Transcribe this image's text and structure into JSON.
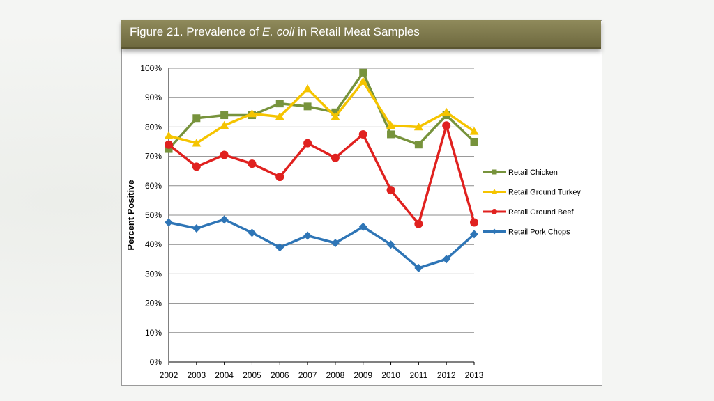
{
  "title": {
    "prefix": "Figure 21. Prevalence of ",
    "italic": "E. coli",
    "suffix": " in Retail Meat Samples"
  },
  "chart_data": {
    "type": "line",
    "title": "Figure 21. Prevalence of E. coli in Retail Meat Samples",
    "ylabel": "Percent Positive",
    "xlabel": "",
    "x": [
      "2002",
      "2003",
      "2004",
      "2005",
      "2006",
      "2007",
      "2008",
      "2009",
      "2010",
      "2011",
      "2012",
      "2013"
    ],
    "ylim": [
      0,
      100
    ],
    "yticks": [
      0,
      10,
      20,
      30,
      40,
      50,
      60,
      70,
      80,
      90,
      100
    ],
    "ytick_suffix": "%",
    "grid": true,
    "legend_position": "right",
    "series": [
      {
        "name": "Retail Chicken",
        "color": "#77933c",
        "marker": "square",
        "values": [
          72.5,
          83,
          84,
          84,
          88,
          87,
          85,
          98.5,
          77.5,
          74,
          84,
          75
        ]
      },
      {
        "name": "Retail Ground Turkey",
        "color": "#f5c400",
        "marker": "triangle",
        "values": [
          77,
          74.5,
          80.5,
          84.5,
          83.5,
          93,
          83.5,
          95.5,
          80.5,
          80,
          85,
          78.5
        ]
      },
      {
        "name": "Retail Ground Beef",
        "color": "#e0211f",
        "marker": "circle",
        "values": [
          74,
          66.5,
          70.5,
          67.5,
          63,
          74.5,
          69.5,
          77.5,
          58.5,
          47,
          80.5,
          47.5
        ]
      },
      {
        "name": "Retail Pork Chops",
        "color": "#2e75b6",
        "marker": "diamond",
        "values": [
          47.5,
          45.5,
          48.5,
          44,
          39,
          43,
          40.5,
          46,
          40,
          32,
          35,
          43.5
        ]
      }
    ]
  }
}
